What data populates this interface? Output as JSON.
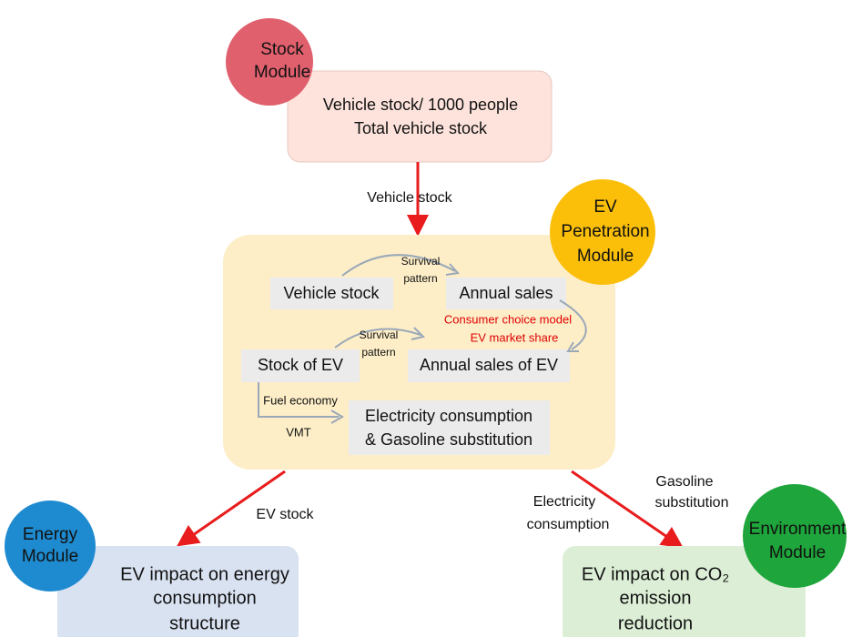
{
  "modules": [
    {
      "lines": [
        "Stock",
        "Module"
      ]
    },
    {
      "lines": [
        "EV",
        "Penetration",
        "Module"
      ]
    },
    {
      "lines": [
        "Energy",
        "Module"
      ]
    },
    {
      "lines": [
        "Environment",
        "Module"
      ]
    }
  ],
  "stock_box": {
    "lines": [
      "Vehicle stock/ 1000 people",
      "Total vehicle stock"
    ]
  },
  "penetration_box": {
    "nodes": [
      "Vehicle stock",
      "Annual sales",
      "Stock of EV",
      "Annual sales of EV"
    ],
    "output": [
      "Electricity consumption",
      "& Gasoline substitution"
    ],
    "survival_1": [
      "Survival",
      "pattern"
    ],
    "survival_2": [
      "Survival",
      "pattern"
    ],
    "choice": [
      "Consumer choice model",
      "EV market share"
    ],
    "fuel": "Fuel economy",
    "vmt": "VMT"
  },
  "edges": {
    "vehicle_stock": "Vehicle  stock",
    "ev_stock": "EV stock",
    "electricity": [
      "Electricity",
      "consumption"
    ],
    "gasoline": [
      "Gasoline",
      "substitution"
    ]
  },
  "energy_box": {
    "lines": [
      "EV impact on energy",
      "consumption",
      "structure"
    ]
  },
  "environment_box": {
    "lines": [
      "EV impact on CO₂",
      "emission",
      "reduction"
    ]
  }
}
